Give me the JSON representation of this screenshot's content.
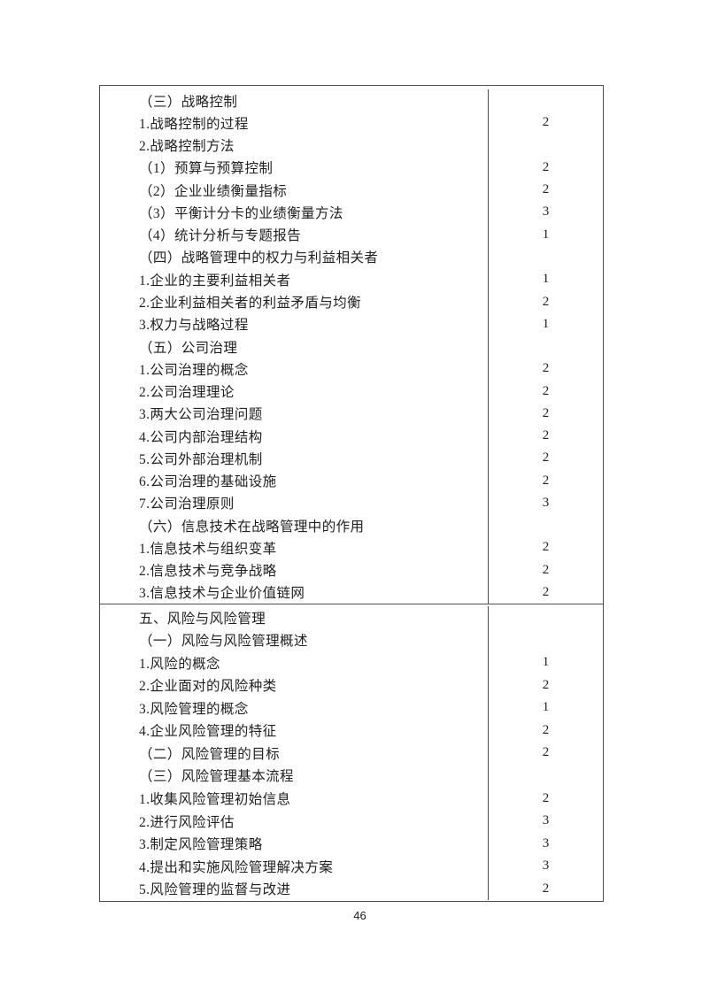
{
  "page": {
    "number": "46"
  },
  "colors": {
    "text": "#212121",
    "border": "#4f4f4f"
  },
  "table": {
    "columns": [
      "topic",
      "level"
    ],
    "rows": [
      {
        "lines": [
          {
            "text": "（三）战略控制",
            "level": ""
          },
          {
            "text": "1.战略控制的过程",
            "level": "2"
          },
          {
            "text": "2.战略控制方法",
            "level": ""
          },
          {
            "text": "（1）预算与预算控制",
            "level": "2"
          },
          {
            "text": "（2）企业业绩衡量指标",
            "level": "2"
          },
          {
            "text": "（3）平衡计分卡的业绩衡量方法",
            "level": "3"
          },
          {
            "text": "（4）统计分析与专题报告",
            "level": "1"
          },
          {
            "text": "（四）战略管理中的权力与利益相关者",
            "level": ""
          },
          {
            "text": "1.企业的主要利益相关者",
            "level": "1"
          },
          {
            "text": "2.企业利益相关者的利益矛盾与均衡",
            "level": "2"
          },
          {
            "text": "3.权力与战略过程",
            "level": "1"
          },
          {
            "text": "（五）公司治理",
            "level": ""
          },
          {
            "text": "1.公司治理的概念",
            "level": "2"
          },
          {
            "text": "2.公司治理理论",
            "level": "2"
          },
          {
            "text": "3.两大公司治理问题",
            "level": "2"
          },
          {
            "text": "4.公司内部治理结构",
            "level": "2"
          },
          {
            "text": "5.公司外部治理机制",
            "level": "2"
          },
          {
            "text": "6.公司治理的基础设施",
            "level": "2"
          },
          {
            "text": "7.公司治理原则",
            "level": "3"
          },
          {
            "text": "（六）信息技术在战略管理中的作用",
            "level": ""
          },
          {
            "text": "1.信息技术与组织变革",
            "level": "2"
          },
          {
            "text": "2.信息技术与竞争战略",
            "level": "2"
          },
          {
            "text": "3.信息技术与企业价值链网",
            "level": "2"
          }
        ]
      },
      {
        "lines": [
          {
            "text": "五、风险与风险管理",
            "level": ""
          },
          {
            "text": "（一）风险与风险管理概述",
            "level": ""
          },
          {
            "text": "1.风险的概念",
            "level": "1"
          },
          {
            "text": "2.企业面对的风险种类",
            "level": "2"
          },
          {
            "text": "3.风险管理的概念",
            "level": "1"
          },
          {
            "text": "4.企业风险管理的特征",
            "level": "2"
          },
          {
            "text": "（二）风险管理的目标",
            "level": "2"
          },
          {
            "text": "（三）风险管理基本流程",
            "level": ""
          },
          {
            "text": "1.收集风险管理初始信息",
            "level": "2"
          },
          {
            "text": "2.进行风险评估",
            "level": "3"
          },
          {
            "text": "3.制定风险管理策略",
            "level": "3"
          },
          {
            "text": "4.提出和实施风险管理解决方案",
            "level": "3"
          },
          {
            "text": "5.风险管理的监督与改进",
            "level": "2"
          }
        ]
      }
    ]
  }
}
